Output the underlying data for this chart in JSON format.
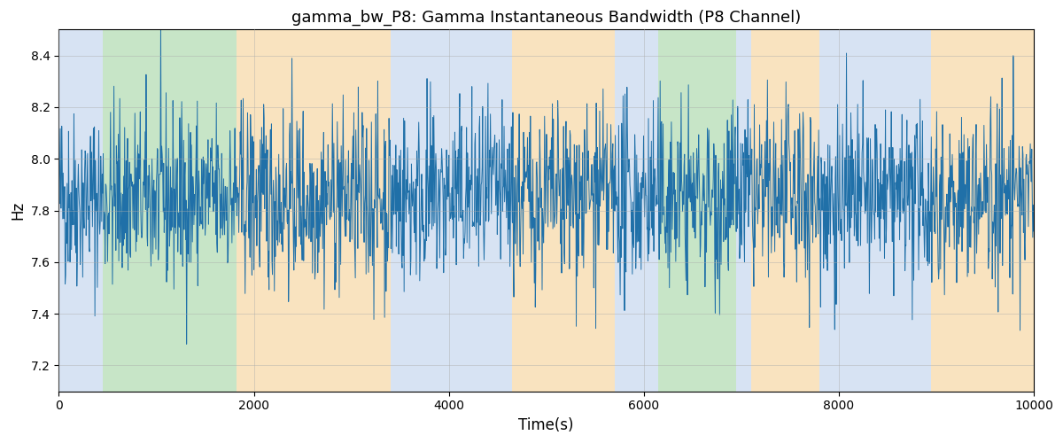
{
  "title": "gamma_bw_P8: Gamma Instantaneous Bandwidth (P8 Channel)",
  "xlabel": "Time(s)",
  "ylabel": "Hz",
  "xlim": [
    0,
    10000
  ],
  "ylim": [
    7.1,
    8.5
  ],
  "line_color": "#2070a8",
  "line_width": 0.7,
  "bg_bands": [
    {
      "xmin": 0,
      "xmax": 450,
      "color": "#b0c8e8",
      "alpha": 0.5
    },
    {
      "xmin": 450,
      "xmax": 1820,
      "color": "#90cc90",
      "alpha": 0.5
    },
    {
      "xmin": 1820,
      "xmax": 3400,
      "color": "#f5c880",
      "alpha": 0.5
    },
    {
      "xmin": 3400,
      "xmax": 4650,
      "color": "#b0c8e8",
      "alpha": 0.5
    },
    {
      "xmin": 4650,
      "xmax": 5700,
      "color": "#f5c880",
      "alpha": 0.5
    },
    {
      "xmin": 5700,
      "xmax": 6150,
      "color": "#b0c8e8",
      "alpha": 0.5
    },
    {
      "xmin": 6150,
      "xmax": 6950,
      "color": "#90cc90",
      "alpha": 0.5
    },
    {
      "xmin": 6950,
      "xmax": 7100,
      "color": "#b0c8e8",
      "alpha": 0.5
    },
    {
      "xmin": 7100,
      "xmax": 7800,
      "color": "#f5c880",
      "alpha": 0.5
    },
    {
      "xmin": 7800,
      "xmax": 8950,
      "color": "#b0c8e8",
      "alpha": 0.5
    },
    {
      "xmin": 8950,
      "xmax": 10000,
      "color": "#f5c880",
      "alpha": 0.5
    }
  ],
  "seed": 42,
  "n_points": 2000,
  "mean": 7.85,
  "std": 0.175,
  "yticks": [
    7.2,
    7.4,
    7.6,
    7.8,
    8.0,
    8.2,
    8.4
  ],
  "xticks": [
    0,
    2000,
    4000,
    6000,
    8000,
    10000
  ],
  "grid_color": "#aaaaaa",
  "grid_alpha": 0.6,
  "title_fontsize": 13,
  "label_fontsize": 12,
  "tick_fontsize": 10,
  "figsize": [
    12.0,
    5.0
  ],
  "dpi": 100
}
